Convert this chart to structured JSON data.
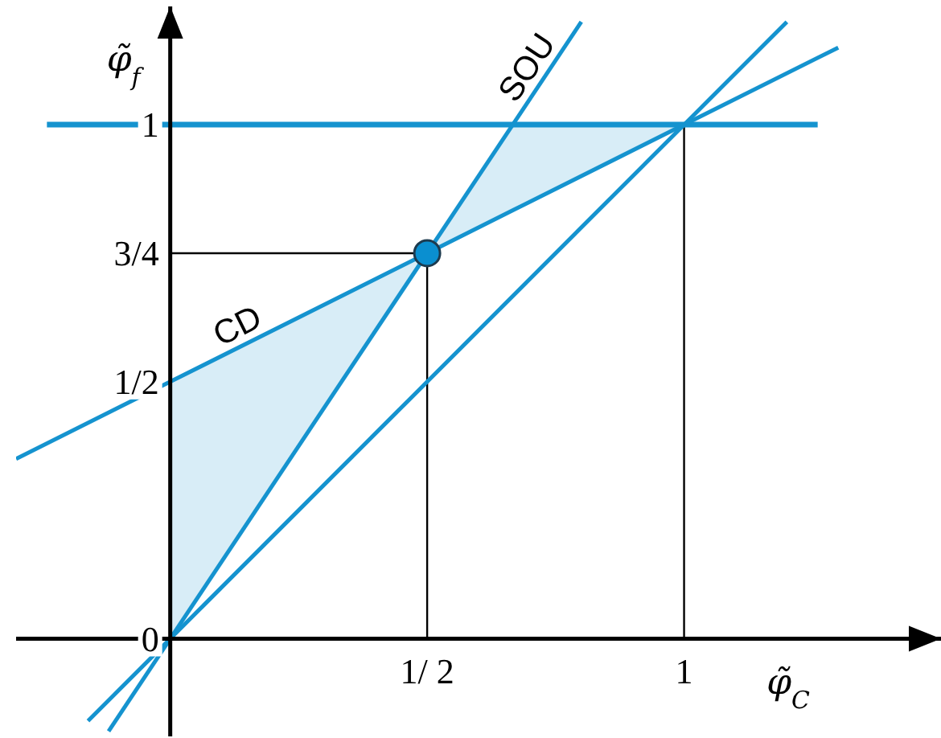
{
  "chart_data": {
    "type": "line",
    "xlabel": "φ̃$_{C}$",
    "ylabel": "φ̃$_{f}$",
    "xlim": [
      -0.3,
      1.5
    ],
    "ylim": [
      -0.19,
      1.23
    ],
    "xticks": [
      {
        "value": 0.5,
        "label": "1/ 2"
      },
      {
        "value": 1,
        "label": "1"
      }
    ],
    "yticks": [
      {
        "value": 0,
        "label": "0"
      },
      {
        "value": 0.5,
        "label": "1/2"
      },
      {
        "value": 0.75,
        "label": "3/4"
      },
      {
        "value": 1,
        "label": "1"
      }
    ],
    "series": [
      {
        "name": "CD",
        "color": "#1593cf",
        "x": [
          -0.3,
          0,
          0.5,
          0.67,
          1,
          1.3
        ],
        "values": [
          0.35,
          0.5,
          0.75,
          0.835,
          1,
          1.15
        ],
        "lower": [
          null,
          0,
          0.75,
          0.835,
          1,
          null
        ],
        "upper": [
          null,
          0.5,
          0.75,
          1,
          1,
          null
        ]
      },
      {
        "name": "SOU",
        "color": "#1593cf",
        "x": [
          -0.12,
          0.8
        ],
        "values": [
          -0.18,
          1.2
        ]
      },
      {
        "color": "#1593cf",
        "x": [
          -0.16,
          1.2
        ],
        "values": [
          -0.16,
          1.2
        ]
      },
      {
        "color": "#1593cf",
        "x": [
          -0.24,
          1.26
        ],
        "values": [
          1,
          1
        ]
      },
      {
        "type": "scatter",
        "color": "#0a8fd0",
        "x": [
          0.5
        ],
        "values": [
          0.75
        ],
        "marker": "circle"
      }
    ],
    "ref_lines": [
      {
        "axis": "x",
        "value": 0.5,
        "color": "#000000"
      },
      {
        "axis": "y",
        "value": 0.75,
        "color": "#000000"
      },
      {
        "axis": "x",
        "value": 1,
        "color": "#000000"
      }
    ]
  }
}
